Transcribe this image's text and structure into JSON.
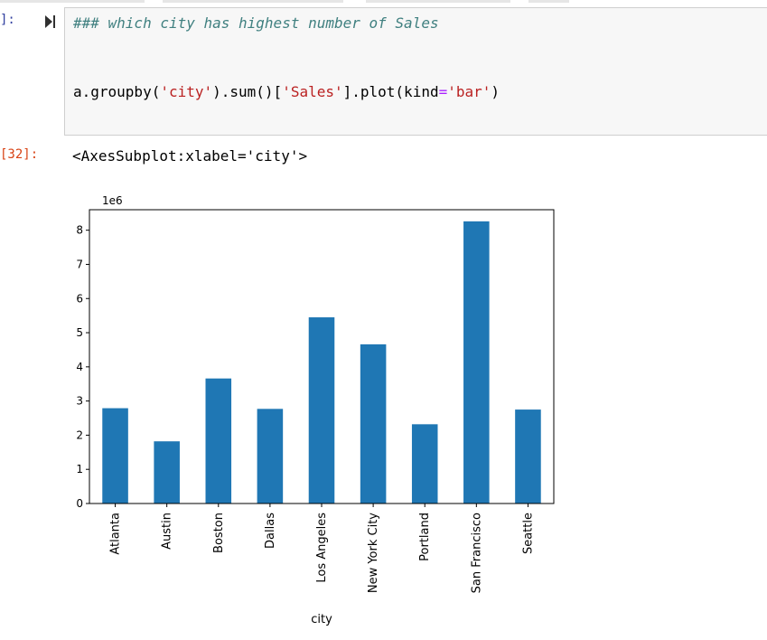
{
  "notebook": {
    "input_prompt": "]:",
    "input_comment": "### which city has highest number of Sales",
    "code": {
      "obj": "a.groupby(",
      "arg1": "'city'",
      "mid": ").sum()[",
      "arg2": "'Sales'",
      "tail1": "].plot(kind",
      "eq": "=",
      "arg3": "'bar'",
      "tail2": ")"
    },
    "output_prompt": "[32]:",
    "output_text": "<AxesSubplot:xlabel='city'>"
  },
  "colors": {
    "bar": "#1f77b4",
    "prompt_in": "#303f9f",
    "prompt_out": "#d84315"
  },
  "chart_data": {
    "type": "bar",
    "categories": [
      "Atlanta",
      "Austin",
      "Boston",
      "Dallas",
      "Los Angeles",
      "New York City",
      "Portland",
      "San Francisco",
      "Seattle"
    ],
    "values": [
      2.79,
      1.82,
      3.66,
      2.77,
      5.45,
      4.66,
      2.32,
      8.26,
      2.75
    ],
    "scale_label": "1e6",
    "xlabel": "city",
    "ylabel": "",
    "ylim": [
      0,
      8.6
    ],
    "yticks": [
      0,
      1,
      2,
      3,
      4,
      5,
      6,
      7,
      8
    ],
    "grid": false,
    "legend": "none"
  }
}
